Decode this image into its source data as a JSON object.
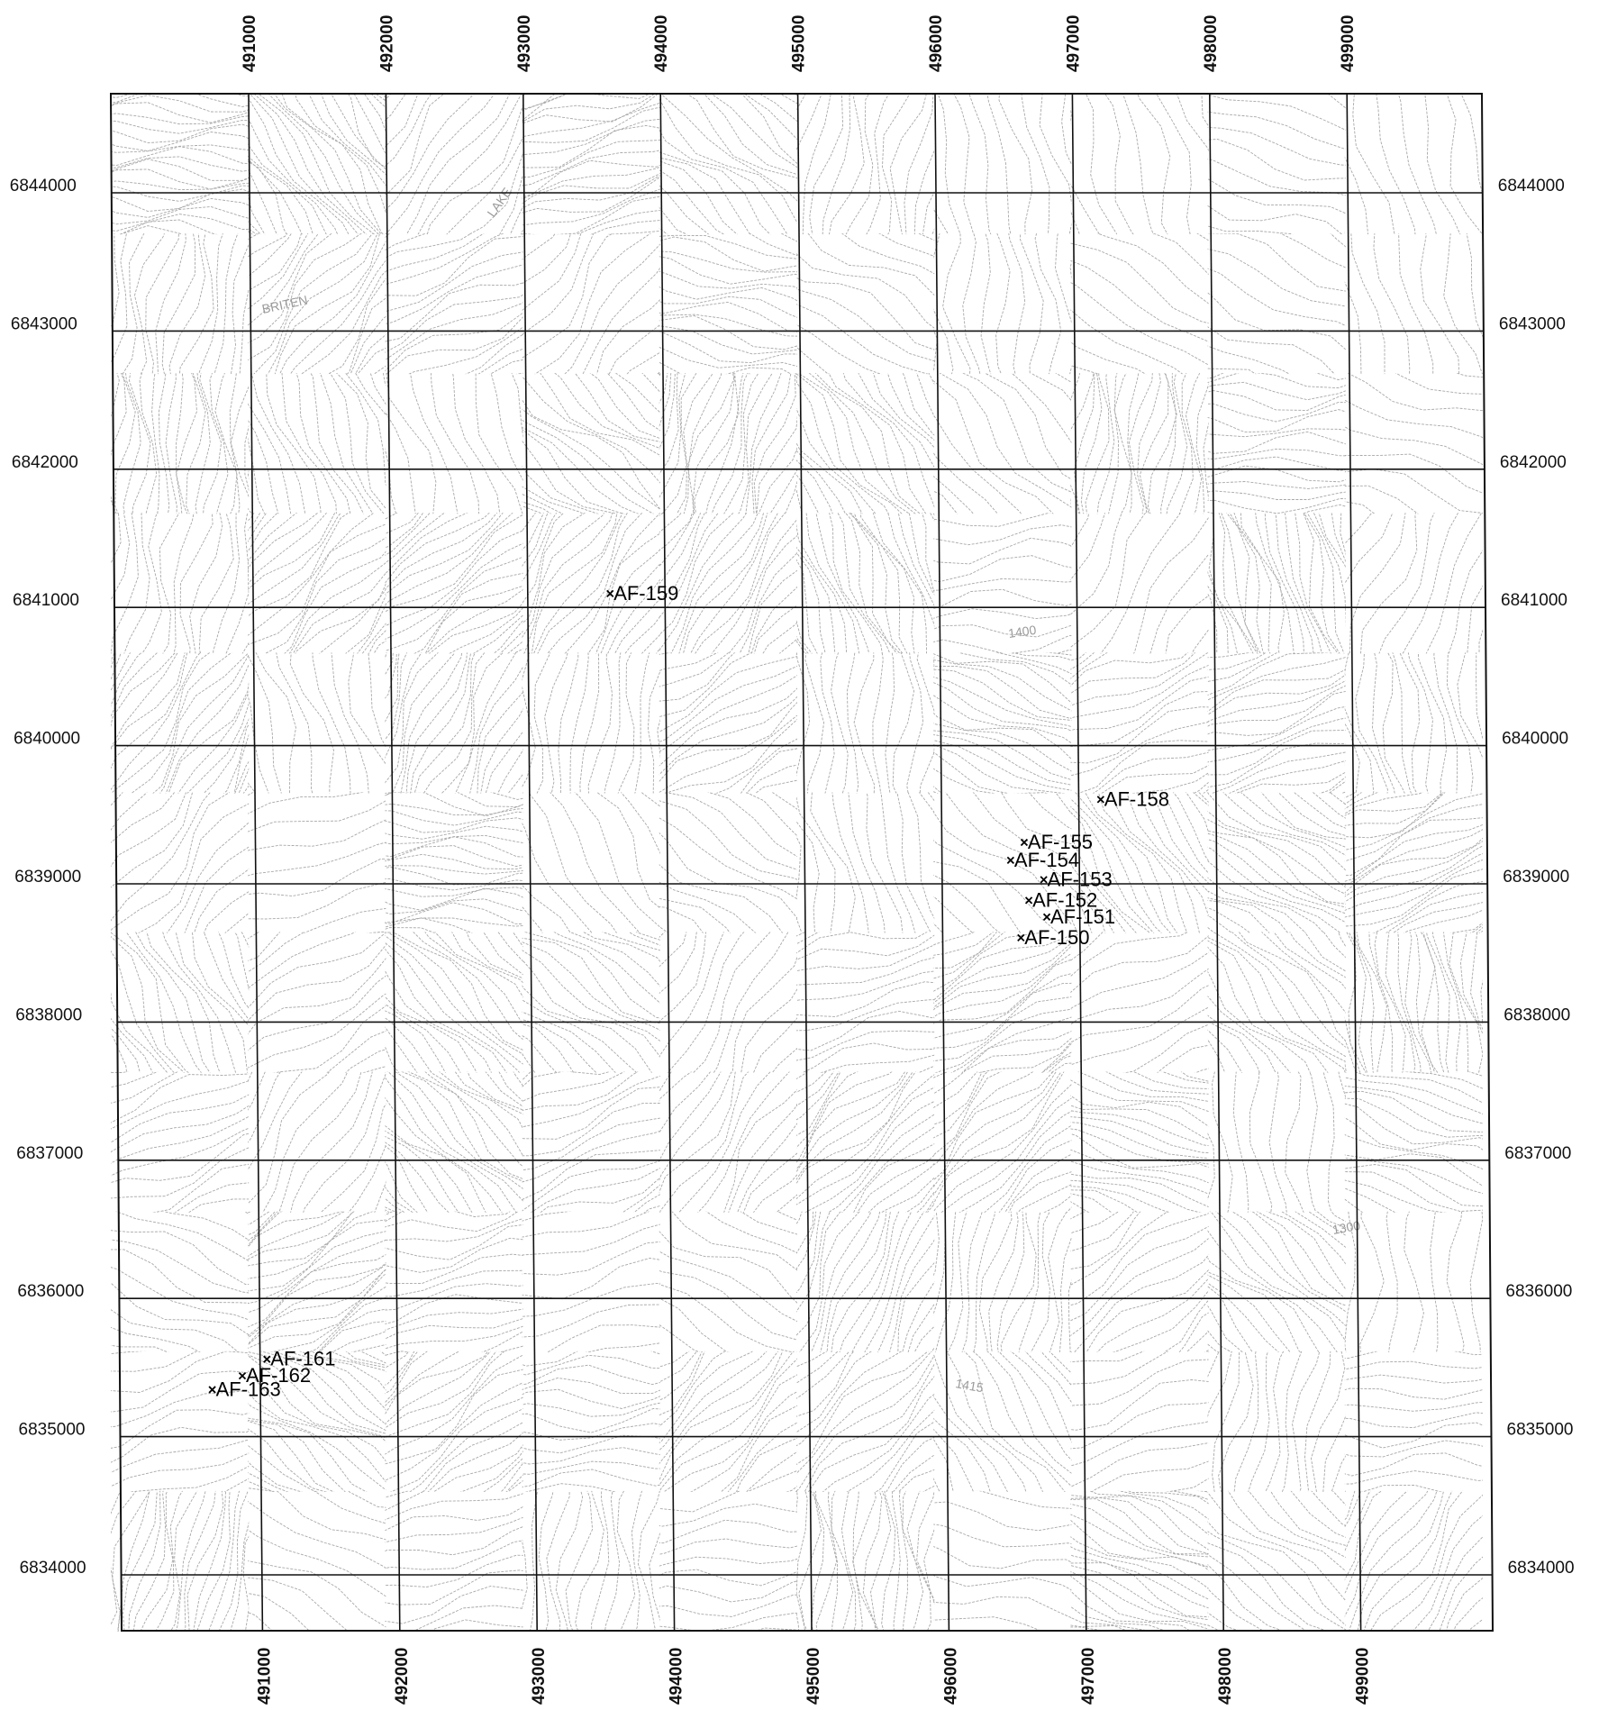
{
  "map": {
    "easting_ticks": [
      491000,
      492000,
      493000,
      494000,
      495000,
      496000,
      497000,
      498000,
      499000
    ],
    "northing_ticks": [
      6844000,
      6843000,
      6842000,
      6841000,
      6840000,
      6839000,
      6838000,
      6837000,
      6836000,
      6835000,
      6834000
    ],
    "samples": [
      {
        "id": "AF-159",
        "easting": 493600,
        "northing": 6841100
      },
      {
        "id": "AF-158",
        "easting": 497160,
        "northing": 6839610
      },
      {
        "id": "AF-155",
        "easting": 496600,
        "northing": 6839300
      },
      {
        "id": "AF-154",
        "easting": 496500,
        "northing": 6839170
      },
      {
        "id": "AF-153",
        "easting": 496740,
        "northing": 6839030
      },
      {
        "id": "AF-152",
        "easting": 496630,
        "northing": 6838880
      },
      {
        "id": "AF-151",
        "easting": 496760,
        "northing": 6838760
      },
      {
        "id": "AF-150",
        "easting": 496570,
        "northing": 6838610
      },
      {
        "id": "AF-161",
        "easting": 491050,
        "northing": 6835560
      },
      {
        "id": "AF-162",
        "easting": 490870,
        "northing": 6835440
      },
      {
        "id": "AF-163",
        "easting": 490650,
        "northing": 6835340
      }
    ],
    "annotations": [
      "BRITEN",
      "LAKE",
      "1400",
      "1415",
      "1300"
    ],
    "colors": {
      "grid": "#111111",
      "contour": "#a8a8a8",
      "marker": "#000000"
    }
  }
}
